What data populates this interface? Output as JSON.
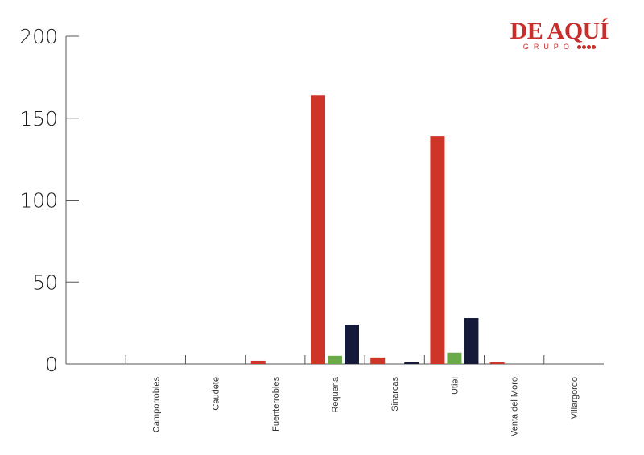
{
  "logo": {
    "main": "DE AQUÍ",
    "sub": "GRUPO",
    "color": "#c62f2c"
  },
  "colors": {
    "series": [
      "#cf3428",
      "#6aaa48",
      "#151a3b"
    ]
  },
  "chart_data": {
    "type": "bar",
    "categories": [
      "",
      "Camporrobles",
      "Caudete",
      "Fuenterrobles",
      "Requena",
      "Sinarcas",
      "Utiel",
      "Venta del Moro",
      "Villargordo"
    ],
    "series": [
      {
        "values": [
          0,
          0,
          0,
          2,
          164,
          4,
          139,
          1,
          0
        ]
      },
      {
        "values": [
          0,
          0,
          0,
          0,
          5,
          0,
          7,
          0,
          0
        ]
      },
      {
        "values": [
          0,
          0,
          0,
          0,
          24,
          1,
          28,
          0,
          0
        ]
      }
    ],
    "ylim": [
      0,
      200
    ],
    "yticks": [
      0,
      50,
      100,
      150,
      200
    ],
    "yticks_labels": [
      "0",
      "50",
      "100",
      "150",
      "200"
    ],
    "xlabel": "",
    "ylabel": "",
    "grid": false,
    "legend": "none"
  }
}
